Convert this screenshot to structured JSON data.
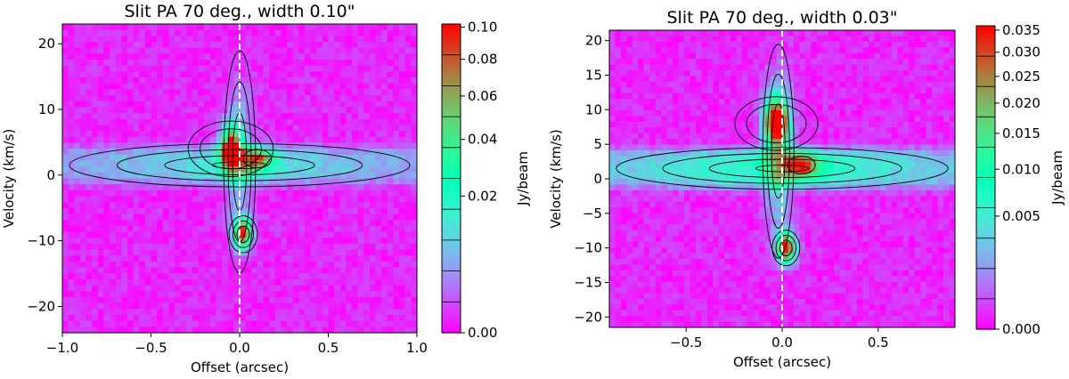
{
  "chart_data": [
    {
      "type": "heatmap",
      "title": "Slit PA 70 deg., width 0.10\"",
      "xlabel": "Offset (arcsec)",
      "ylabel": "Velocity (km/s)",
      "xlim": [
        -1.0,
        1.0
      ],
      "ylim": [
        -24,
        23
      ],
      "xticks": [
        -1.0,
        -0.5,
        0.0,
        0.5,
        1.0
      ],
      "xtick_labels": [
        "−1.0",
        "−0.5",
        "0.0",
        "0.5",
        "1.0"
      ],
      "yticks": [
        -20,
        -10,
        0,
        10,
        20
      ],
      "ytick_labels": [
        "−20",
        "−10",
        "0",
        "10",
        "20"
      ],
      "colorbar": {
        "label": "Jy/beam",
        "min": 0.0,
        "max": 0.102,
        "ticks": [
          0.0,
          0.02,
          0.04,
          0.06,
          0.08,
          0.1
        ],
        "tick_labels": [
          "0.00",
          "0.02",
          "0.04",
          "0.06",
          "0.08",
          "0.10"
        ],
        "scale": "sqrt"
      },
      "center_line_x": 0.0,
      "features": [
        {
          "name": "horizontal band",
          "offset": 0.0,
          "velocity": 1.5,
          "value": 0.03
        },
        {
          "name": "vertical jet",
          "offset": 0.0,
          "velocity": 2.0,
          "value": 0.02
        },
        {
          "name": "redshifted peak",
          "offset": -0.05,
          "velocity": 4.0,
          "value": 0.1
        },
        {
          "name": "secondary peak",
          "offset": 0.1,
          "velocity": 2.5,
          "value": 0.06
        },
        {
          "name": "blueshifted peak",
          "offset": 0.02,
          "velocity": -9.0,
          "value": 0.09
        }
      ]
    },
    {
      "type": "heatmap",
      "title": "Slit PA 70 deg., width 0.03\"",
      "xlabel": "Offset (arcsec)",
      "ylabel": "Velocity (km/s)",
      "xlim": [
        -0.9,
        0.9
      ],
      "ylim": [
        -21.5,
        21.5
      ],
      "xticks": [
        -0.5,
        0.0,
        0.5
      ],
      "xtick_labels": [
        "−0.5",
        "0.0",
        "0.5"
      ],
      "yticks": [
        -20,
        -15,
        -10,
        -5,
        0,
        5,
        10,
        15,
        20
      ],
      "ytick_labels": [
        "−20",
        "−15",
        "−10",
        "−5",
        "0",
        "5",
        "10",
        "15",
        "20"
      ],
      "colorbar": {
        "label": "Jy/beam",
        "min": 0.0,
        "max": 0.036,
        "ticks": [
          0.0,
          0.005,
          0.01,
          0.015,
          0.02,
          0.025,
          0.03,
          0.035
        ],
        "tick_labels": [
          "0.000",
          "0.005",
          "0.010",
          "0.015",
          "0.020",
          "0.025",
          "0.030",
          "0.035"
        ],
        "scale": "sqrt"
      },
      "center_line_x": 0.0,
      "features": [
        {
          "name": "horizontal band",
          "offset": 0.0,
          "velocity": 1.5,
          "value": 0.014
        },
        {
          "name": "vertical jet",
          "offset": -0.02,
          "velocity": 4.0,
          "value": 0.01
        },
        {
          "name": "redshifted peak",
          "offset": -0.03,
          "velocity": 8.0,
          "value": 0.036
        },
        {
          "name": "secondary peak",
          "offset": 0.1,
          "velocity": 2.0,
          "value": 0.022
        },
        {
          "name": "blueshifted peak",
          "offset": 0.02,
          "velocity": -10.0,
          "value": 0.034
        }
      ]
    }
  ]
}
